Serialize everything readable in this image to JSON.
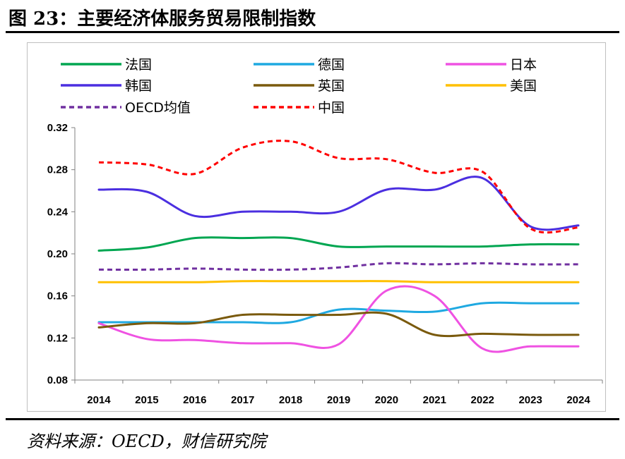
{
  "figure": {
    "title": "图 23：主要经济体服务贸易限制指数",
    "source": "资料来源：OECD，财信研究院"
  },
  "chart_data": {
    "type": "line",
    "title": "",
    "xlabel": "",
    "ylabel": "",
    "x": [
      "2014",
      "2015",
      "2016",
      "2017",
      "2018",
      "2019",
      "2020",
      "2021",
      "2022",
      "2023",
      "2024"
    ],
    "y_ticks": [
      "0.08",
      "0.12",
      "0.16",
      "0.20",
      "0.24",
      "0.28",
      "0.32"
    ],
    "ylim": [
      0.08,
      0.32
    ],
    "grid": false,
    "legend_position": "top",
    "series": [
      {
        "name": "法国",
        "color": "#00a651",
        "dash": "solid",
        "values": [
          0.203,
          0.206,
          0.215,
          0.215,
          0.215,
          0.207,
          0.207,
          0.207,
          0.207,
          0.209,
          0.209
        ]
      },
      {
        "name": "德国",
        "color": "#1fa9e1",
        "dash": "solid",
        "values": [
          0.135,
          0.135,
          0.135,
          0.135,
          0.135,
          0.147,
          0.146,
          0.145,
          0.153,
          0.153,
          0.153
        ]
      },
      {
        "name": "日本",
        "color": "#ef52e2",
        "dash": "solid",
        "values": [
          0.134,
          0.119,
          0.118,
          0.115,
          0.115,
          0.114,
          0.165,
          0.16,
          0.11,
          0.112,
          0.112
        ]
      },
      {
        "name": "韩国",
        "color": "#4b2fe0",
        "dash": "solid",
        "values": [
          0.261,
          0.259,
          0.236,
          0.24,
          0.24,
          0.24,
          0.261,
          0.261,
          0.272,
          0.226,
          0.227
        ]
      },
      {
        "name": "英国",
        "color": "#7a5a0d",
        "dash": "solid",
        "values": [
          0.13,
          0.134,
          0.134,
          0.142,
          0.142,
          0.142,
          0.143,
          0.123,
          0.124,
          0.123,
          0.123
        ]
      },
      {
        "name": "美国",
        "color": "#ffc000",
        "dash": "solid",
        "values": [
          0.173,
          0.173,
          0.173,
          0.174,
          0.174,
          0.174,
          0.174,
          0.173,
          0.173,
          0.173,
          0.173
        ]
      },
      {
        "name": "OECD均值",
        "color": "#7030a0",
        "dash": "dashed",
        "values": [
          0.185,
          0.185,
          0.186,
          0.185,
          0.185,
          0.187,
          0.191,
          0.19,
          0.191,
          0.19,
          0.19
        ]
      },
      {
        "name": "中国",
        "color": "#ff0000",
        "dash": "dashed",
        "values": [
          0.287,
          0.285,
          0.276,
          0.301,
          0.307,
          0.291,
          0.29,
          0.277,
          0.278,
          0.224,
          0.225
        ]
      }
    ]
  }
}
